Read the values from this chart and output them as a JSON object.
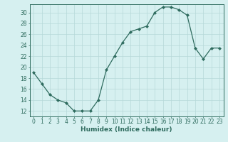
{
  "x": [
    0,
    1,
    2,
    3,
    4,
    5,
    6,
    7,
    8,
    9,
    10,
    11,
    12,
    13,
    14,
    15,
    16,
    17,
    18,
    19,
    20,
    21,
    22,
    23
  ],
  "y": [
    19,
    17,
    15,
    14,
    13.5,
    12,
    12,
    12,
    14,
    19.5,
    22,
    24.5,
    26.5,
    27,
    27.5,
    30,
    31,
    31,
    30.5,
    29.5,
    23.5,
    21.5,
    23.5,
    23.5
  ],
  "line_color": "#2e6b5e",
  "marker_color": "#2e6b5e",
  "bg_color": "#d6f0f0",
  "grid_color": "#b5d9d9",
  "xlabel": "Humidex (Indice chaleur)",
  "xlim": [
    -0.5,
    23.5
  ],
  "ylim": [
    11,
    31.5
  ],
  "yticks": [
    12,
    14,
    16,
    18,
    20,
    22,
    24,
    26,
    28,
    30
  ],
  "xticks": [
    0,
    1,
    2,
    3,
    4,
    5,
    6,
    7,
    8,
    9,
    10,
    11,
    12,
    13,
    14,
    15,
    16,
    17,
    18,
    19,
    20,
    21,
    22,
    23
  ],
  "xlabel_fontsize": 6.5,
  "tick_fontsize": 5.5
}
